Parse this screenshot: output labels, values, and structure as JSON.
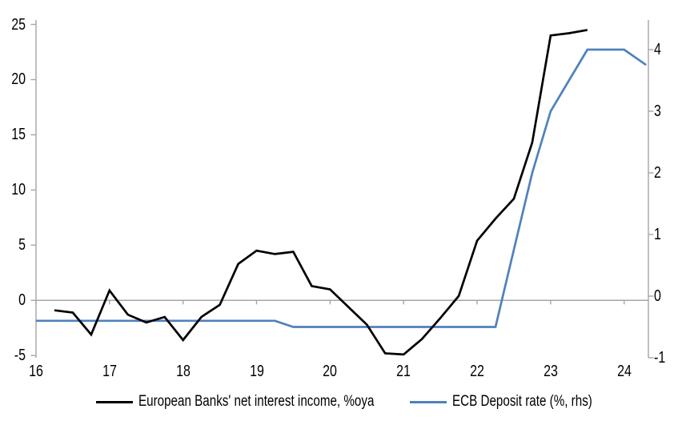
{
  "chart_data": {
    "type": "line",
    "title": "",
    "legend_position": "bottom",
    "grid": "zero-line-only",
    "colors": {
      "axis": "#a6a6a6",
      "zero_line": "#a6a6a6",
      "text": "#000000",
      "background": "#ffffff"
    },
    "x_axis": {
      "tick_labels": [
        "16",
        "17",
        "18",
        "19",
        "20",
        "21",
        "22",
        "23",
        "24"
      ],
      "tick_values": [
        2016,
        2017,
        2018,
        2019,
        2020,
        2021,
        2022,
        2023,
        2024
      ],
      "range": [
        2016,
        2024.33
      ]
    },
    "left_axis": {
      "ticks": [
        -5,
        0,
        5,
        10,
        15,
        20,
        25
      ],
      "range": [
        -5.2,
        25.4
      ]
    },
    "right_axis": {
      "ticks": [
        -1,
        0,
        1,
        2,
        3,
        4
      ],
      "range": [
        -1.0,
        4.48
      ]
    },
    "series": [
      {
        "name": "European Banks' net interest income, %oya",
        "axis": "left",
        "color": "#000000",
        "x": [
          2016.25,
          2016.5,
          2016.75,
          2017.0,
          2017.25,
          2017.5,
          2017.75,
          2018.0,
          2018.25,
          2018.5,
          2018.75,
          2019.0,
          2019.25,
          2019.5,
          2019.75,
          2020.0,
          2020.25,
          2020.5,
          2020.75,
          2021.0,
          2021.25,
          2021.5,
          2021.75,
          2022.0,
          2022.25,
          2022.5,
          2022.75,
          2023.0,
          2023.25,
          2023.5
        ],
        "values": [
          -0.9,
          -1.1,
          -3.1,
          0.9,
          -1.3,
          -2.0,
          -1.5,
          -3.6,
          -1.5,
          -0.4,
          3.3,
          4.5,
          4.2,
          4.4,
          1.3,
          1.0,
          -0.6,
          -2.2,
          -4.8,
          -4.9,
          -3.5,
          -1.6,
          0.4,
          5.4,
          7.4,
          9.2,
          14.3,
          24.0,
          24.2,
          24.5
        ]
      },
      {
        "name": "ECB Deposit rate (%, rhs)",
        "axis": "right",
        "color": "#4f81bd",
        "x": [
          2016.0,
          2016.25,
          2016.5,
          2016.75,
          2017.0,
          2017.25,
          2017.5,
          2017.75,
          2018.0,
          2018.25,
          2018.5,
          2018.75,
          2019.0,
          2019.25,
          2019.5,
          2019.75,
          2020.0,
          2020.25,
          2020.5,
          2020.75,
          2021.0,
          2021.25,
          2021.5,
          2021.75,
          2022.0,
          2022.25,
          2022.5,
          2022.75,
          2023.0,
          2023.25,
          2023.5,
          2023.75,
          2024.0,
          2024.3
        ],
        "values": [
          -0.4,
          -0.4,
          -0.4,
          -0.4,
          -0.4,
          -0.4,
          -0.4,
          -0.4,
          -0.4,
          -0.4,
          -0.4,
          -0.4,
          -0.4,
          -0.4,
          -0.5,
          -0.5,
          -0.5,
          -0.5,
          -0.5,
          -0.5,
          -0.5,
          -0.5,
          -0.5,
          -0.5,
          -0.5,
          -0.5,
          0.75,
          2.0,
          3.0,
          3.5,
          4.0,
          4.0,
          4.0,
          3.75
        ]
      }
    ]
  }
}
